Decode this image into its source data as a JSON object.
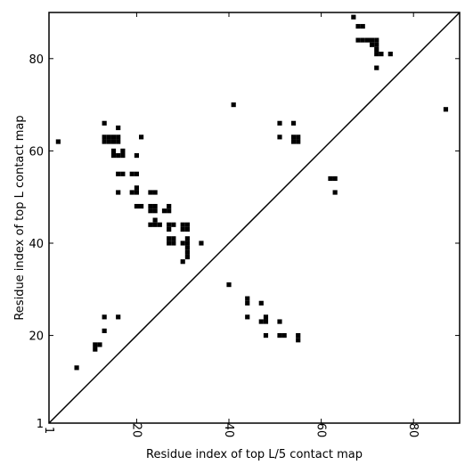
{
  "chart_data": {
    "type": "scatter",
    "title": "",
    "xlabel": "Residue index of top L/5 contact map",
    "ylabel": "Residue index of top L contact map",
    "xlim": [
      1,
      90
    ],
    "ylim": [
      1,
      90
    ],
    "xticks": [
      1,
      20,
      40,
      60,
      80
    ],
    "yticks": [
      1,
      20,
      40,
      60,
      80
    ],
    "grid": false,
    "marker": "square",
    "color": "#000000",
    "diagonal": {
      "from": [
        1,
        1
      ],
      "to": [
        90,
        90
      ]
    },
    "series": [
      {
        "region": "upper-left",
        "points": [
          [
            3,
            62
          ],
          [
            13,
            66
          ],
          [
            16,
            65
          ],
          [
            13,
            63
          ],
          [
            14,
            63
          ],
          [
            15,
            63
          ],
          [
            16,
            63
          ],
          [
            13,
            62
          ],
          [
            14,
            62
          ],
          [
            15,
            62
          ],
          [
            16,
            62
          ],
          [
            21,
            63
          ],
          [
            15,
            60
          ],
          [
            17,
            60
          ],
          [
            15,
            59
          ],
          [
            16,
            59
          ],
          [
            17,
            59
          ],
          [
            20,
            59
          ],
          [
            16,
            55
          ],
          [
            17,
            55
          ],
          [
            19,
            55
          ],
          [
            20,
            55
          ],
          [
            16,
            51
          ],
          [
            19,
            51
          ],
          [
            20,
            51
          ],
          [
            20,
            52
          ],
          [
            23,
            51
          ],
          [
            24,
            51
          ],
          [
            20,
            48
          ],
          [
            21,
            48
          ],
          [
            23,
            48
          ],
          [
            24,
            48
          ],
          [
            23,
            47
          ],
          [
            24,
            47
          ],
          [
            26,
            47
          ],
          [
            27,
            47
          ],
          [
            27,
            48
          ],
          [
            24,
            45
          ],
          [
            23,
            44
          ],
          [
            24,
            44
          ],
          [
            25,
            44
          ],
          [
            27,
            44
          ],
          [
            28,
            44
          ],
          [
            27,
            43
          ],
          [
            30,
            44
          ],
          [
            31,
            44
          ],
          [
            30,
            43
          ],
          [
            31,
            43
          ],
          [
            27,
            41
          ],
          [
            28,
            41
          ],
          [
            27,
            40
          ],
          [
            28,
            40
          ],
          [
            30,
            40
          ],
          [
            31,
            41
          ],
          [
            31,
            40
          ],
          [
            31,
            39
          ],
          [
            31,
            38
          ],
          [
            31,
            37
          ],
          [
            34,
            40
          ],
          [
            30,
            36
          ],
          [
            7,
            13
          ],
          [
            11,
            18
          ],
          [
            12,
            18
          ],
          [
            11,
            17
          ],
          [
            13,
            24
          ],
          [
            16,
            24
          ],
          [
            13,
            21
          ],
          [
            41,
            70
          ],
          [
            51,
            66
          ],
          [
            54,
            66
          ],
          [
            51,
            63
          ],
          [
            54,
            63
          ],
          [
            55,
            63
          ],
          [
            54,
            62
          ],
          [
            55,
            62
          ],
          [
            67,
            89
          ],
          [
            68,
            87
          ],
          [
            69,
            87
          ],
          [
            68,
            84
          ],
          [
            69,
            84
          ],
          [
            70,
            84
          ],
          [
            71,
            84
          ],
          [
            72,
            84
          ],
          [
            71,
            83
          ],
          [
            72,
            83
          ],
          [
            72,
            82
          ],
          [
            72,
            81
          ],
          [
            73,
            81
          ],
          [
            75,
            81
          ],
          [
            72,
            78
          ],
          [
            87,
            69
          ]
        ]
      },
      {
        "region": "lower-right",
        "points": [
          [
            62,
            54
          ],
          [
            63,
            54
          ],
          [
            63,
            51
          ],
          [
            40,
            31
          ],
          [
            44,
            28
          ],
          [
            44,
            27
          ],
          [
            47,
            27
          ],
          [
            44,
            24
          ],
          [
            48,
            24
          ],
          [
            47,
            23
          ],
          [
            48,
            23
          ],
          [
            51,
            23
          ],
          [
            48,
            20
          ],
          [
            51,
            20
          ],
          [
            52,
            20
          ],
          [
            55,
            20
          ],
          [
            55,
            19
          ]
        ]
      }
    ]
  }
}
